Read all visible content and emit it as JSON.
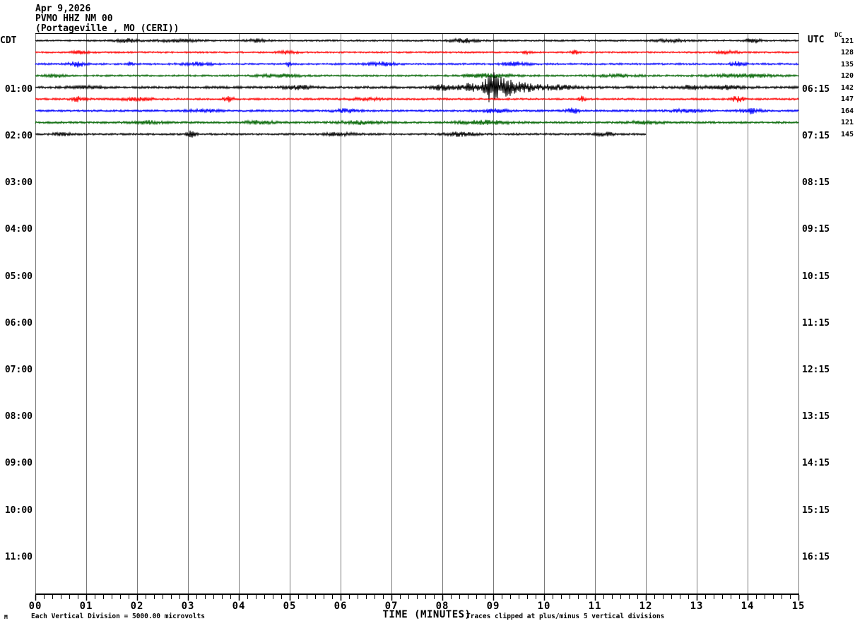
{
  "header": {
    "date": "Apr 9,2026",
    "station": "PVMO HHZ NM 00",
    "location": "(Portageville , MO (CERI))"
  },
  "left_axis": {
    "label": "CDT",
    "hours": [
      "01:00",
      "02:00",
      "03:00",
      "04:00",
      "05:00",
      "06:00",
      "07:00",
      "08:00",
      "09:00",
      "10:00",
      "11:00"
    ]
  },
  "right_axis": {
    "label": "UTC",
    "dc_label": "DC",
    "hours": [
      "06:15",
      "07:15",
      "08:15",
      "09:15",
      "10:15",
      "11:15",
      "12:15",
      "13:15",
      "14:15",
      "15:15",
      "16:15"
    ]
  },
  "x_axis": {
    "label": "TIME (MINUTES)",
    "ticks": [
      "00",
      "01",
      "02",
      "03",
      "04",
      "05",
      "06",
      "07",
      "08",
      "09",
      "10",
      "11",
      "12",
      "13",
      "14",
      "15"
    ]
  },
  "footer": {
    "left_note": "Each Vertical Division = 5000.00 microvolts",
    "right_note": "Traces clipped at plus/minus 5 vertical divisions",
    "corner_mark": "M"
  },
  "colors": {
    "grid": "#787878",
    "axis": "#000000",
    "traces": {
      "black": "#000000",
      "red": "#ff0000",
      "blue": "#0000ff",
      "green": "#006400"
    }
  },
  "chart_data": {
    "type": "line",
    "subtype": "helicorder-seismogram",
    "title": "PVMO HHZ NM 00 (Portageville , MO (CERI)) Apr 9,2026",
    "xlabel": "TIME (MINUTES)",
    "x_range_minutes": [
      0,
      15
    ],
    "minutes_per_row": 15,
    "minor_tick_seconds": 10,
    "grid": "vertical-minute-lines",
    "legend_position": "none",
    "vertical_division_microvolts": 5000.0,
    "clip_divisions": 5,
    "burst_format": "[minute_center, width_minutes, amplitude_px]",
    "rows": [
      {
        "row": 1,
        "color": "black",
        "left_label": "",
        "right_label": "",
        "dc": "121",
        "end_minute": 15,
        "base_amp": 1.2,
        "bursts": [
          [
            1.8,
            0.25,
            2.5
          ],
          [
            2.8,
            0.4,
            1.8
          ],
          [
            4.35,
            0.2,
            2.2
          ],
          [
            8.45,
            0.3,
            2.6
          ],
          [
            12.5,
            0.3,
            1.8
          ],
          [
            14.1,
            0.12,
            4.0
          ]
        ]
      },
      {
        "row": 2,
        "color": "red",
        "left_label": "",
        "right_label": "",
        "dc": "128",
        "end_minute": 15,
        "base_amp": 1.2,
        "bursts": [
          [
            0.9,
            0.2,
            1.8
          ],
          [
            4.95,
            0.2,
            2.2
          ],
          [
            9.65,
            0.1,
            2.2
          ],
          [
            10.6,
            0.08,
            2.8
          ],
          [
            13.6,
            0.2,
            2.2
          ]
        ]
      },
      {
        "row": 3,
        "color": "blue",
        "left_label": "",
        "right_label": "",
        "dc": "135",
        "end_minute": 15,
        "base_amp": 1.3,
        "bursts": [
          [
            0.82,
            0.15,
            3.8
          ],
          [
            1.87,
            0.03,
            6.0
          ],
          [
            3.2,
            0.3,
            2.0
          ],
          [
            4.97,
            0.04,
            5.0
          ],
          [
            6.8,
            0.3,
            2.4
          ],
          [
            9.45,
            0.25,
            2.6
          ],
          [
            13.8,
            0.15,
            3.0
          ]
        ]
      },
      {
        "row": 4,
        "color": "green",
        "left_label": "",
        "right_label": "",
        "dc": "120",
        "end_minute": 15,
        "base_amp": 1.3,
        "bursts": [
          [
            0.42,
            0.2,
            2.2
          ],
          [
            4.8,
            0.4,
            2.0
          ],
          [
            8.9,
            0.5,
            2.4
          ],
          [
            11.4,
            0.4,
            1.8
          ],
          [
            13.9,
            0.6,
            2.4
          ]
        ]
      },
      {
        "row": 5,
        "color": "black",
        "left_label": "01:00",
        "right_label": "06:15",
        "dc": "142",
        "end_minute": 15,
        "base_amp": 1.7,
        "bursts": [
          [
            1.0,
            0.3,
            2.0
          ],
          [
            5.2,
            0.3,
            2.2
          ],
          [
            8.0,
            0.2,
            3.5
          ],
          [
            8.55,
            0.25,
            5.0
          ],
          [
            8.95,
            0.13,
            19.0
          ],
          [
            9.2,
            0.2,
            10.0
          ],
          [
            9.5,
            0.35,
            5.0
          ],
          [
            10.1,
            0.6,
            2.8
          ],
          [
            12.9,
            0.25,
            2.5
          ],
          [
            13.6,
            0.3,
            2.2
          ]
        ]
      },
      {
        "row": 6,
        "color": "red",
        "left_label": "",
        "right_label": "",
        "dc": "147",
        "end_minute": 15,
        "base_amp": 1.4,
        "bursts": [
          [
            0.85,
            0.15,
            3.2
          ],
          [
            2.0,
            0.3,
            2.0
          ],
          [
            3.8,
            0.1,
            3.4
          ],
          [
            6.5,
            0.3,
            2.0
          ],
          [
            10.75,
            0.08,
            3.5
          ],
          [
            13.8,
            0.12,
            4.2
          ]
        ]
      },
      {
        "row": 7,
        "color": "blue",
        "left_label": "",
        "right_label": "",
        "dc": "164",
        "end_minute": 15,
        "base_amp": 1.4,
        "bursts": [
          [
            3.3,
            0.3,
            2.0
          ],
          [
            6.1,
            0.25,
            2.4
          ],
          [
            9.0,
            0.3,
            2.2
          ],
          [
            10.55,
            0.12,
            4.2
          ],
          [
            12.8,
            0.3,
            2.4
          ],
          [
            14.05,
            0.18,
            3.6
          ]
        ]
      },
      {
        "row": 8,
        "color": "green",
        "left_label": "",
        "right_label": "",
        "dc": "121",
        "end_minute": 15,
        "base_amp": 1.5,
        "bursts": [
          [
            2.2,
            0.3,
            2.0
          ],
          [
            4.4,
            0.3,
            2.0
          ],
          [
            6.4,
            0.4,
            2.2
          ],
          [
            8.8,
            0.5,
            2.4
          ],
          [
            12.0,
            0.3,
            2.0
          ]
        ]
      },
      {
        "row": 9,
        "color": "black",
        "left_label": "02:00",
        "right_label": "07:15",
        "dc": "145",
        "end_minute": 12,
        "base_amp": 1.4,
        "bursts": [
          [
            0.5,
            0.2,
            2.0
          ],
          [
            3.07,
            0.09,
            5.0
          ],
          [
            6.0,
            0.3,
            2.2
          ],
          [
            8.35,
            0.3,
            2.6
          ],
          [
            11.2,
            0.2,
            2.4
          ]
        ]
      }
    ],
    "event": {
      "row": 5,
      "trace_hour_cdt": "01:00",
      "approx_peak_minute": 9.0,
      "description": "large seismic burst on 01:00 CDT trace"
    },
    "recording_ends": {
      "row": 9,
      "end_minute": 12
    }
  }
}
